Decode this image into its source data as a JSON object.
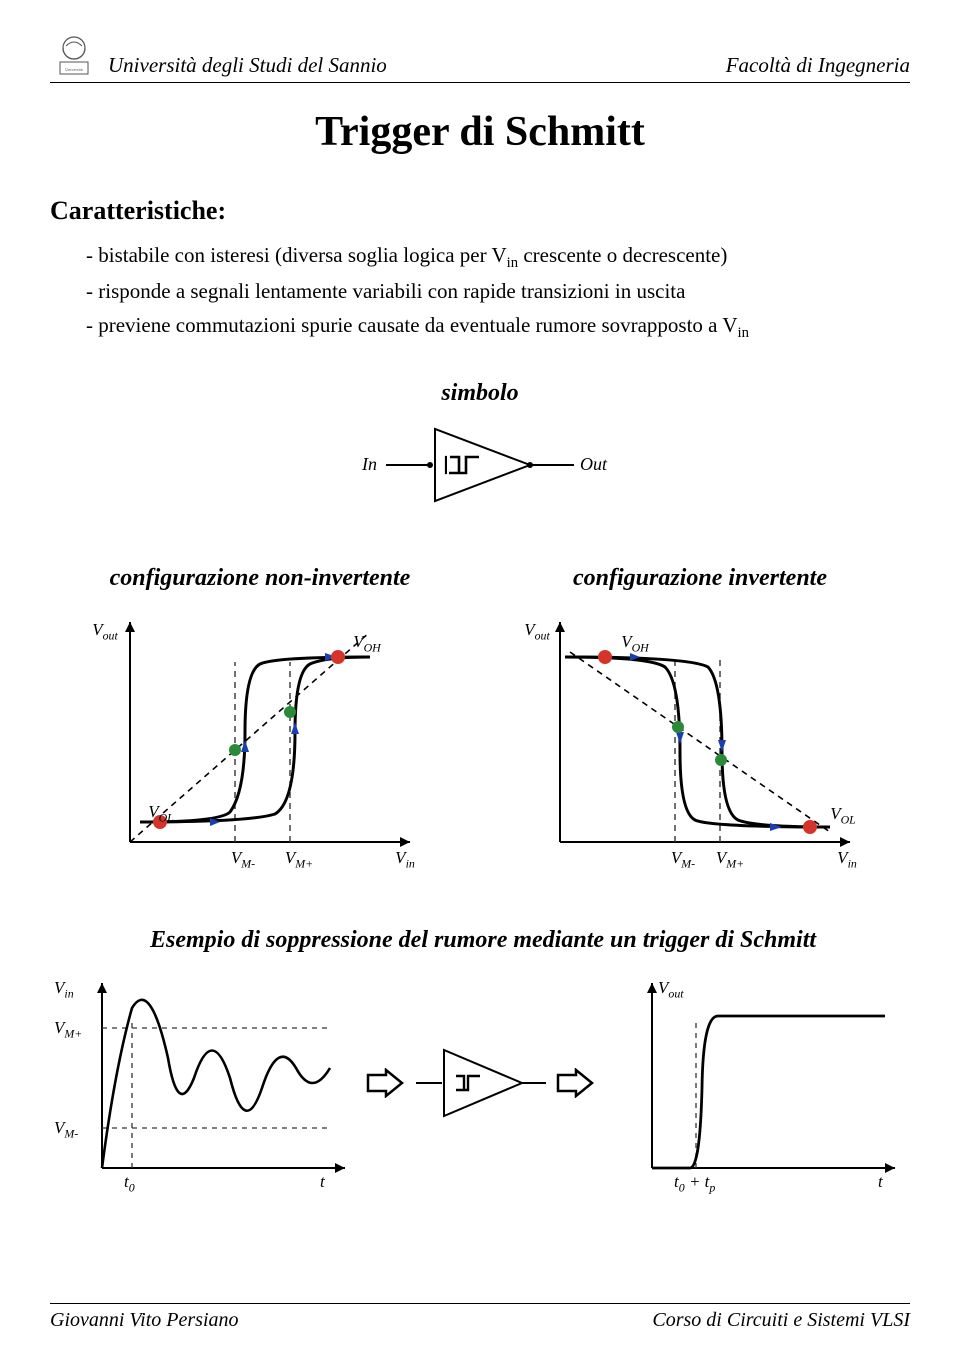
{
  "header": {
    "university": "Università degli Studi del Sannio",
    "faculty": "Facoltà di Ingegneria"
  },
  "title": "Trigger di Schmitt",
  "characteristics_heading": "Caratteristiche:",
  "bullets": [
    "- bistabile con isteresi (diversa soglia logica per V<sub>in</sub> crescente o decrescente)",
    "- risponde a segnali lentamente variabili con rapide transizioni in uscita",
    "- previene commutazioni spurie causate da eventuale rumore sovrapposto a V<sub>in</sub>"
  ],
  "symbol": {
    "heading": "simbolo",
    "in_label": "In",
    "out_label": "Out"
  },
  "hysteresis": {
    "noninv_heading": "configurazione non-invertente",
    "inv_heading": "configurazione invertente",
    "axis_labels": {
      "Vout": "V<sub>out</sub>",
      "Vin": "V<sub>in</sub>",
      "VOH": "V<sub>OH</sub>",
      "VOL": "V<sub>OL</sub>",
      "VMminus": "V<sub>M-</sub>",
      "VMplus": "V<sub>M+</sub>"
    },
    "colors": {
      "curve": "#000000",
      "diagonal": "#000000",
      "dot_red": "#d4342a",
      "dot_green": "#2a8a3a",
      "arrow_blue": "#1a3fb0",
      "dashed": "#333333"
    }
  },
  "noise_example": {
    "heading": "Esempio di soppressione del rumore mediante un trigger di Schmitt",
    "left_labels": {
      "Vin": "V<sub>in</sub>",
      "VMplus": "V<sub>M+</sub>",
      "VMminus": "V<sub>M-</sub>",
      "t0": "t<sub>0</sub>",
      "t": "t"
    },
    "right_labels": {
      "Vout": "V<sub>out</sub>",
      "t0tp": "t<sub>0</sub> + t<sub>p</sub>",
      "t": "t"
    }
  },
  "footer": {
    "author": "Giovanni Vito Persiano",
    "course": "Corso di Circuiti e Sistemi VLSI"
  }
}
